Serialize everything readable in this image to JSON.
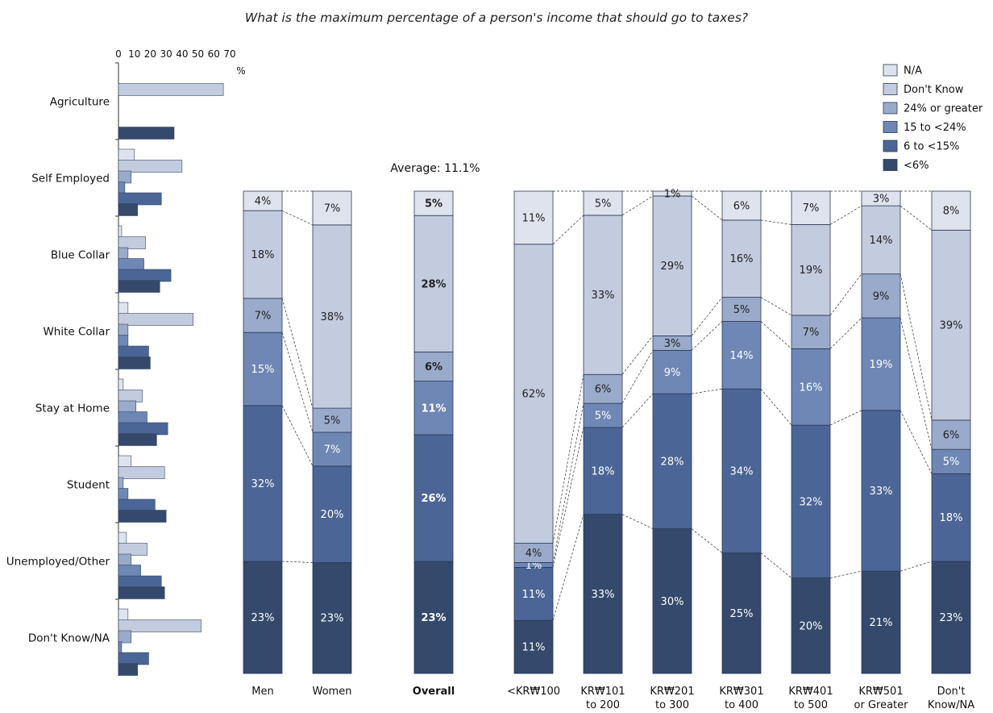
{
  "title": "What is the maximum percentage of a person's income that should go to taxes?",
  "average_label": "Average: 11.1%",
  "colors": {
    "na": "#dfe3ee",
    "dont_know": "#c3cbdf",
    "p24_plus": "#9aaacb",
    "p15_24": "#6e87b5",
    "p6_15": "#4b6596",
    "lt6": "#34496b"
  },
  "chart_data": [
    {
      "type": "bar",
      "orientation": "horizontal",
      "axis_ticks": [
        "0",
        "10",
        "20",
        "30",
        "40",
        "50",
        "60",
        "70"
      ],
      "axis_unit": "%",
      "xlim": [
        0,
        70
      ],
      "categories": [
        "Agriculture",
        "Self Employed",
        "Blue Collar",
        "White Collar",
        "Stay at Home",
        "Student",
        "Unemployed/Other",
        "Don't Know/NA"
      ],
      "series": [
        {
          "name": "N/A",
          "values": [
            0,
            10,
            2,
            6,
            3,
            8,
            5,
            6
          ]
        },
        {
          "name": "Don't Know",
          "values": [
            66,
            40,
            17,
            47,
            15,
            29,
            18,
            52
          ]
        },
        {
          "name": "24% or greater",
          "values": [
            0,
            8,
            6,
            6,
            11,
            3,
            8,
            8
          ]
        },
        {
          "name": "15 to <24%",
          "values": [
            0,
            4,
            16,
            6,
            18,
            6,
            14,
            2
          ]
        },
        {
          "name": "6 to <15%",
          "values": [
            0,
            27,
            33,
            19,
            31,
            23,
            27,
            19
          ]
        },
        {
          "name": "<6%",
          "values": [
            35,
            12,
            26,
            20,
            24,
            30,
            29,
            12
          ]
        }
      ]
    },
    {
      "type": "bar",
      "stacked": true,
      "normalized": true,
      "categories": [
        "Men",
        "Women",
        "Overall",
        "<KR₩100",
        "KR₩101\nto 200",
        "KR₩201\nto 300",
        "KR₩301\nto 400",
        "KR₩401\nto 500",
        "KR₩501\nor Greater",
        "Don't\nKnow/NA"
      ],
      "series": [
        {
          "name": "<6%",
          "values": [
            23,
            23,
            23,
            11,
            33,
            30,
            25,
            20,
            21,
            23
          ]
        },
        {
          "name": "6 to <15%",
          "values": [
            32,
            20,
            26,
            11,
            18,
            28,
            34,
            32,
            33,
            18
          ]
        },
        {
          "name": "15 to <24%",
          "values": [
            15,
            7,
            11,
            1,
            5,
            9,
            14,
            16,
            19,
            5
          ]
        },
        {
          "name": "24% or greater",
          "values": [
            7,
            5,
            6,
            4,
            6,
            3,
            5,
            7,
            9,
            6
          ]
        },
        {
          "name": "Don't Know",
          "values": [
            18,
            38,
            28,
            62,
            33,
            29,
            16,
            19,
            14,
            39
          ]
        },
        {
          "name": "N/A",
          "values": [
            4,
            7,
            5,
            11,
            5,
            1,
            6,
            7,
            3,
            8
          ]
        }
      ],
      "legend": {
        "position": "top-right",
        "items": [
          "N/A",
          "Don't Know",
          "24% or greater",
          "15 to <24%",
          "6 to <15%",
          "<6%"
        ]
      }
    }
  ]
}
